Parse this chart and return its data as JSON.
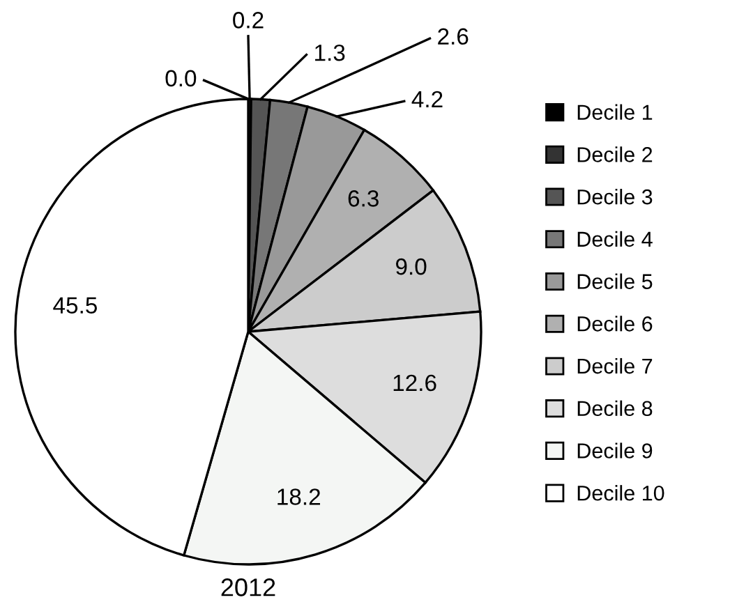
{
  "chart_data": {
    "type": "pie",
    "xlabel": "2012",
    "categories": [
      "Decile 1",
      "Decile 2",
      "Decile 3",
      "Decile 4",
      "Decile 5",
      "Decile 6",
      "Decile 7",
      "Decile 8",
      "Decile 9",
      "Decile 10"
    ],
    "values": [
      0.0,
      0.2,
      1.3,
      2.6,
      4.2,
      6.3,
      9.0,
      12.6,
      18.2,
      45.5
    ],
    "colors": [
      "#000000",
      "#333333",
      "#555555",
      "#777777",
      "#999999",
      "#b0b0b0",
      "#cccccc",
      "#dddddd",
      "#f4f6f4",
      "#ffffff"
    ],
    "value_labels": [
      "0.0",
      "0.2",
      "1.3",
      "2.6",
      "4.2",
      "6.3",
      "9.0",
      "12.6",
      "18.2",
      "45.5"
    ],
    "legend": "right"
  }
}
